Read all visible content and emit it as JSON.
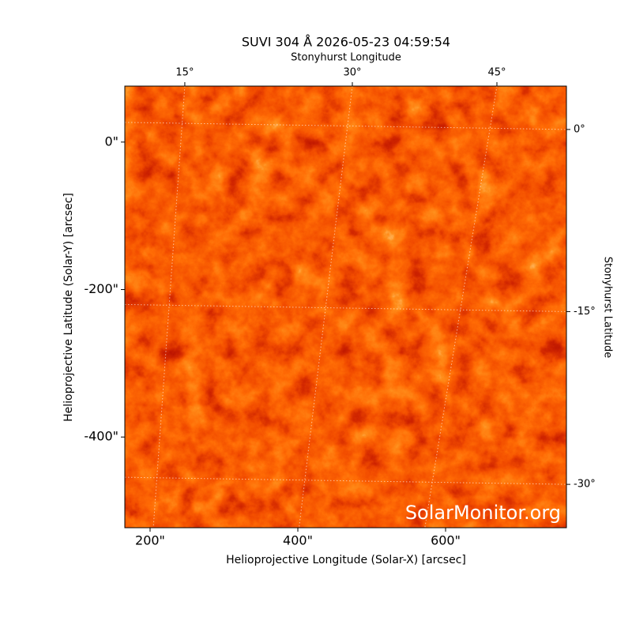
{
  "chart_data": {
    "type": "image",
    "title": "SUVI 304 Å 2026-05-23 04:59:54",
    "xlabel": "Helioprojective Longitude (Solar-X) [arcsec]",
    "ylabel": "Helioprojective Latitude (Solar-Y) [arcsec]",
    "x2label": "Stonyhurst Longitude",
    "y2label": "Stonyhurst Latitude",
    "watermark": "SolarMonitor.org",
    "xlim": [
      165.8,
      763.6
    ],
    "ylim": [
      -523,
      75.9
    ],
    "xticks": [
      {
        "value": 200,
        "label": "200\""
      },
      {
        "value": 400,
        "label": "400\""
      },
      {
        "value": 600,
        "label": "600\""
      }
    ],
    "yticks": [
      {
        "value": 0,
        "label": "0\""
      },
      {
        "value": -200,
        "label": "-200\""
      },
      {
        "value": -400,
        "label": "-400\""
      }
    ],
    "x2ticks": [
      {
        "value": 247,
        "label": "15°"
      },
      {
        "value": 473.8,
        "label": "30°"
      },
      {
        "value": 669.5,
        "label": "45°"
      }
    ],
    "y2ticks": [
      {
        "value": 17.1,
        "label": "0°"
      },
      {
        "value": -229.9,
        "label": "-15°"
      },
      {
        "value": -464.2,
        "label": "-30°"
      }
    ],
    "grid": true
  }
}
